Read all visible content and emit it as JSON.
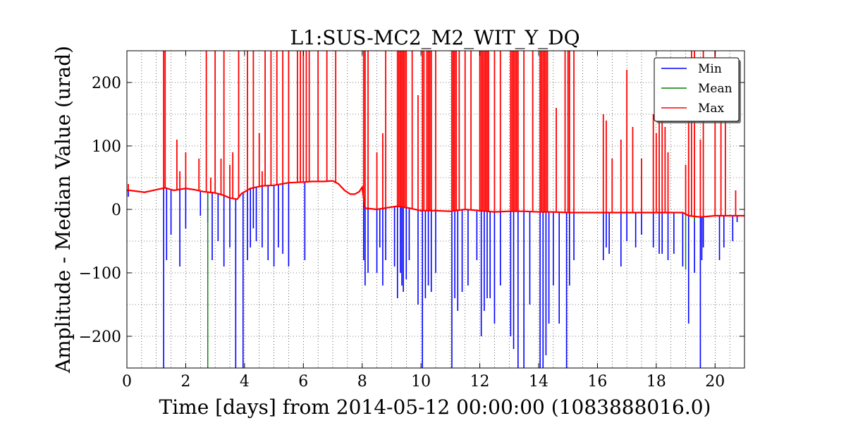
{
  "chart_data": {
    "type": "line",
    "title": "L1:SUS-MC2_M2_WIT_Y_DQ",
    "xlabel": "Time [days] from 2014-05-12 00:00:00 (1083888016.0)",
    "ylabel": "Amplitude - Median Value (urad)",
    "xlim": [
      0,
      21
    ],
    "ylim": [
      -250,
      250
    ],
    "xticks": [
      0,
      2,
      4,
      6,
      8,
      10,
      12,
      14,
      16,
      18,
      20
    ],
    "xtick_labels": [
      "0",
      "2",
      "4",
      "6",
      "8",
      "10",
      "12",
      "14",
      "16",
      "18",
      "20"
    ],
    "yticks": [
      -200,
      -100,
      0,
      100,
      200
    ],
    "ytick_labels": [
      "−200",
      "−100",
      "0",
      "100",
      "200"
    ],
    "grid": true,
    "legend": {
      "placement": "top-right",
      "entries": [
        "Min",
        "Mean",
        "Max"
      ]
    },
    "colors": {
      "Min": "#0000ff",
      "Mean": "#008000",
      "Max": "#ff0000"
    },
    "baseline": {
      "x": [
        0,
        0.1,
        0.6,
        1.0,
        1.3,
        1.6,
        2.0,
        2.3,
        2.6,
        3.0,
        3.3,
        3.5,
        3.75,
        3.9,
        4.2,
        4.6,
        5.0,
        5.5,
        6.0,
        6.3,
        6.7,
        7.0,
        7.2,
        7.4,
        7.6,
        7.75,
        7.9,
        8.0,
        8.1,
        8.5,
        8.9,
        9.2,
        9.6,
        10.0,
        10.5,
        11.0,
        11.5,
        12.0,
        12.5,
        13.0,
        13.5,
        14.0,
        14.5,
        15.0,
        16.0,
        17.0,
        18.0,
        18.9,
        19.1,
        19.5,
        20.0,
        20.5,
        21.0
      ],
      "y": [
        30,
        30,
        27,
        31,
        34,
        30,
        33,
        31,
        28,
        26,
        22,
        18,
        16,
        25,
        33,
        37,
        38,
        42,
        43,
        44,
        44,
        45,
        40,
        30,
        24,
        24,
        28,
        35,
        2,
        0,
        3,
        5,
        2,
        -2,
        -2,
        -3,
        0,
        -2,
        -4,
        -3,
        -3,
        -4,
        -4,
        -5,
        -5,
        -5,
        -5,
        -5,
        -10,
        -12,
        -10,
        -10,
        -10
      ]
    },
    "max_spikes": {
      "x": [
        0.05,
        1.25,
        1.3,
        1.7,
        1.8,
        2.0,
        2.45,
        2.7,
        2.85,
        3.0,
        3.2,
        3.3,
        3.5,
        3.6,
        3.8,
        4.1,
        4.3,
        4.5,
        4.6,
        4.7,
        4.9,
        5.1,
        5.3,
        5.5,
        5.8,
        5.9,
        6.0,
        6.1,
        6.2,
        6.5,
        6.8,
        7.1,
        8.05,
        8.1,
        8.2,
        8.5,
        8.7,
        8.8,
        9.2,
        9.25,
        9.3,
        9.35,
        9.4,
        9.45,
        9.5,
        9.7,
        9.9,
        10.05,
        10.1,
        10.2,
        10.25,
        10.3,
        10.35,
        10.5,
        11.05,
        11.1,
        11.15,
        11.2,
        11.3,
        11.5,
        11.7,
        12.0,
        12.05,
        12.1,
        12.15,
        12.2,
        12.25,
        12.3,
        12.5,
        12.7,
        13.05,
        13.1,
        13.15,
        13.2,
        13.25,
        13.3,
        13.5,
        13.8,
        14.05,
        14.1,
        14.15,
        14.2,
        14.25,
        14.3,
        14.6,
        14.9,
        15.0,
        15.05,
        15.2,
        16.2,
        16.3,
        16.5,
        16.8,
        17.0,
        17.2,
        17.5,
        17.9,
        18.0,
        18.1,
        18.2,
        18.3,
        18.4,
        19.0,
        19.1,
        19.2,
        19.3,
        19.5,
        19.6,
        20.0,
        20.2,
        20.35,
        20.7
      ],
      "y": [
        40,
        250,
        250,
        110,
        60,
        90,
        80,
        250,
        50,
        250,
        80,
        250,
        70,
        90,
        250,
        250,
        250,
        120,
        60,
        250,
        250,
        250,
        250,
        250,
        250,
        250,
        250,
        250,
        250,
        250,
        250,
        250,
        250,
        250,
        250,
        90,
        120,
        250,
        250,
        250,
        250,
        250,
        250,
        250,
        250,
        250,
        180,
        250,
        250,
        250,
        250,
        250,
        250,
        250,
        250,
        250,
        250,
        250,
        250,
        250,
        250,
        250,
        250,
        250,
        250,
        250,
        250,
        250,
        250,
        250,
        250,
        250,
        250,
        250,
        250,
        250,
        250,
        250,
        250,
        250,
        250,
        250,
        250,
        250,
        160,
        250,
        250,
        250,
        250,
        150,
        140,
        80,
        110,
        220,
        130,
        80,
        150,
        120,
        160,
        180,
        130,
        90,
        70,
        180,
        250,
        250,
        110,
        250,
        250,
        200,
        170,
        30
      ]
    },
    "min_spikes": {
      "x": [
        0.05,
        1.25,
        1.35,
        1.5,
        1.8,
        2.0,
        2.5,
        2.75,
        2.9,
        3.1,
        3.3,
        3.5,
        3.7,
        3.95,
        4.1,
        4.2,
        4.3,
        4.4,
        4.6,
        4.8,
        5.0,
        5.15,
        5.3,
        5.5,
        6.05,
        8.05,
        8.1,
        8.2,
        8.5,
        8.6,
        8.7,
        8.8,
        9.1,
        9.2,
        9.3,
        9.35,
        9.4,
        9.5,
        9.6,
        9.9,
        10.05,
        10.15,
        10.25,
        10.35,
        10.5,
        11.05,
        11.15,
        11.25,
        11.4,
        11.6,
        11.9,
        12.05,
        12.15,
        12.25,
        12.35,
        12.5,
        12.7,
        13.05,
        13.15,
        13.3,
        13.5,
        13.7,
        14.05,
        14.15,
        14.25,
        14.35,
        14.5,
        14.7,
        14.95,
        15.05,
        15.2,
        16.2,
        16.3,
        16.4,
        16.8,
        17.0,
        17.3,
        17.5,
        17.9,
        18.1,
        18.2,
        18.4,
        18.6,
        18.9,
        19.1,
        19.3,
        19.5,
        19.55,
        19.6,
        20.15,
        20.3,
        20.6,
        20.75
      ],
      "y": [
        20,
        -250,
        -80,
        -40,
        -90,
        -30,
        -10,
        -20,
        -80,
        -50,
        -90,
        -60,
        -250,
        -250,
        -80,
        -60,
        -30,
        -50,
        -60,
        -80,
        -90,
        -60,
        -70,
        -90,
        -80,
        -80,
        -120,
        -100,
        -100,
        -60,
        -120,
        -80,
        -90,
        -140,
        -100,
        -120,
        -130,
        -110,
        -80,
        -150,
        -250,
        -140,
        -120,
        -130,
        -100,
        -250,
        -140,
        -160,
        -130,
        -120,
        -80,
        -200,
        -160,
        -140,
        -140,
        -180,
        -120,
        -200,
        -220,
        -250,
        -250,
        -150,
        -250,
        -250,
        -230,
        -180,
        -120,
        -180,
        -250,
        -120,
        -80,
        -80,
        -60,
        -70,
        -90,
        -50,
        -60,
        -40,
        -60,
        -70,
        -70,
        -80,
        -70,
        -90,
        -180,
        -100,
        -250,
        -80,
        -60,
        -80,
        -60,
        -50,
        -20
      ]
    },
    "mean_spikes": {
      "x": [
        2.75,
        19.0,
        19.3
      ],
      "y": [
        -250,
        -95,
        -20
      ]
    }
  }
}
